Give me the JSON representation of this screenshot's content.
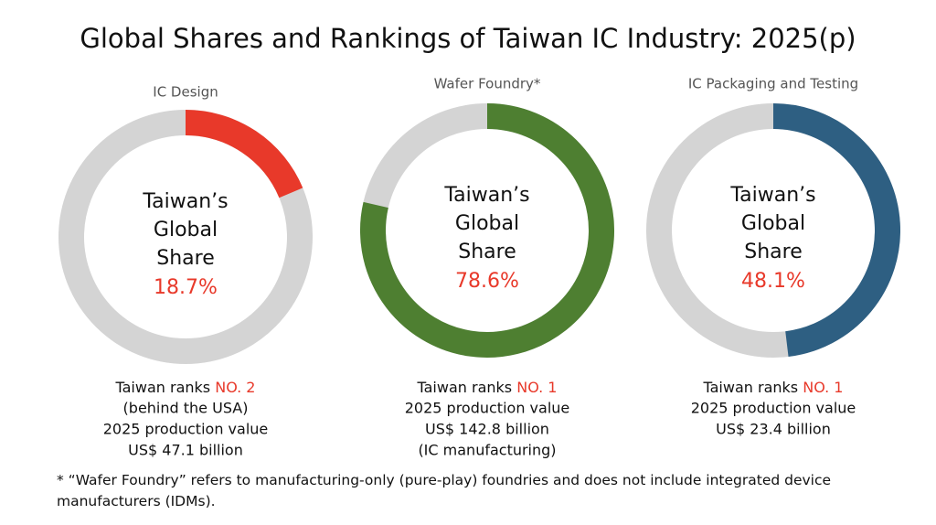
{
  "title": "Global Shares and Rankings of Taiwan IC Industry: 2025(p)",
  "chart_data": [
    {
      "type": "donut",
      "title": "IC Design",
      "center_label": [
        "Taiwan’s",
        "Global",
        "Share"
      ],
      "values": [
        18.7
      ],
      "value_labels": [
        "18.7%"
      ],
      "color": "#e8392a",
      "rest_color": "#d4d4d4",
      "rank_prefix": "Taiwan ranks",
      "rank": "NO. 2",
      "notes": [
        "(behind the USA)",
        "2025 production value",
        "US$ 47.1 billion"
      ]
    },
    {
      "type": "donut",
      "title": "Wafer Foundry*",
      "center_label": [
        "Taiwan’s",
        "Global",
        "Share"
      ],
      "values": [
        78.6
      ],
      "value_labels": [
        "78.6%"
      ],
      "color": "#4e7f31",
      "rest_color": "#d4d4d4",
      "rank_prefix": "Taiwan ranks",
      "rank": "NO. 1",
      "notes": [
        "2025 production value",
        "US$ 142.8 billion",
        "(IC manufacturing)"
      ]
    },
    {
      "type": "donut",
      "title": "IC Packaging and Testing",
      "center_label": [
        "Taiwan’s",
        "Global",
        "Share"
      ],
      "values": [
        48.1
      ],
      "value_labels": [
        "48.1%"
      ],
      "color": "#2e5f82",
      "rest_color": "#d4d4d4",
      "rank_prefix": "Taiwan ranks",
      "rank": "NO. 1",
      "notes": [
        "2025 production value",
        "US$ 23.4 billion"
      ]
    }
  ],
  "footnote": "* “Wafer Foundry” refers to manufacturing-only (pure-play) foundries and does not include integrated device manufacturers (IDMs)."
}
